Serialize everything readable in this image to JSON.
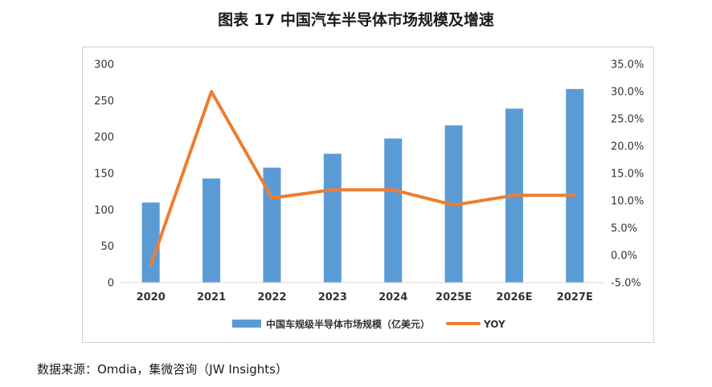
{
  "figure": {
    "title": "图表 17 中国汽车半导体市场规模及增速",
    "source": "数据来源：Omdia，集微咨询（JW Insights）"
  },
  "chart_data": {
    "type": "bar",
    "categories": [
      "2020",
      "2021",
      "2022",
      "2023",
      "2024",
      "2025E",
      "2026E",
      "2027E"
    ],
    "series": [
      {
        "name": "中国车规级半导体市场规模（亿美元）",
        "type": "bar",
        "axis": "left",
        "color": "#5B9BD5",
        "values": [
          110,
          143,
          158,
          177,
          198,
          216,
          239,
          266
        ]
      },
      {
        "name": "YOY",
        "type": "line",
        "axis": "right",
        "color": "#ED7D31",
        "values": [
          -1.8,
          30.0,
          10.5,
          12.0,
          12.0,
          9.2,
          11.0,
          11.0
        ]
      }
    ],
    "left_axis": {
      "ylim": [
        0,
        300
      ],
      "ticks": [
        0,
        50,
        100,
        150,
        200,
        250,
        300
      ],
      "tick_labels": [
        "0",
        "50",
        "100",
        "150",
        "200",
        "250",
        "300"
      ]
    },
    "right_axis": {
      "ylim": [
        -5,
        35
      ],
      "ticks": [
        -5,
        0,
        5,
        10,
        15,
        20,
        25,
        30,
        35
      ],
      "tick_labels": [
        "-5.0%",
        "0.0%",
        "5.0%",
        "10.0%",
        "15.0%",
        "20.0%",
        "25.0%",
        "30.0%",
        "35.0%"
      ]
    },
    "grid": false,
    "legend_position": "bottom"
  }
}
